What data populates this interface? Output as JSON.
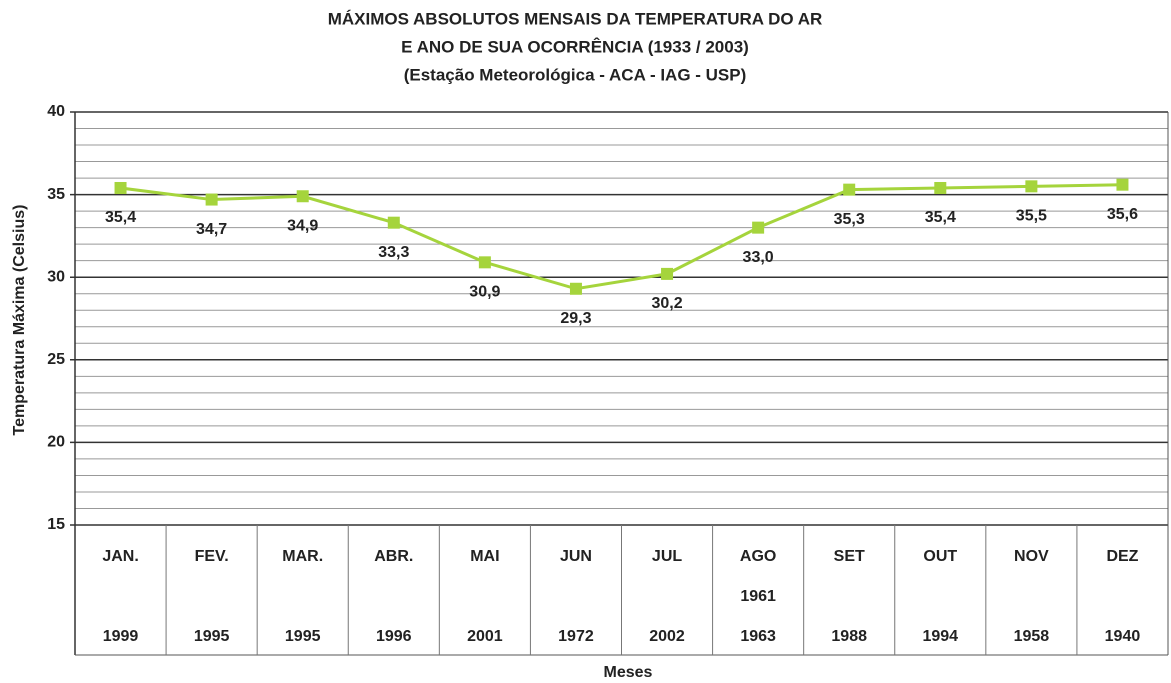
{
  "chart_data": {
    "type": "line",
    "title": [
      "MÁXIMOS ABSOLUTOS MENSAIS DA TEMPERATURA DO AR",
      "E ANO DE SUA OCORRÊNCIA (1933 / 2003)",
      "(Estação Meteorológica - ACA - IAG - USP)"
    ],
    "xlabel": "Meses",
    "ylabel": "Temperatura Máxima (Celsius)",
    "categories": [
      "JAN.",
      "FEV.",
      "MAR.",
      "ABR.",
      "MAI",
      "JUN",
      "JUL",
      "AGO",
      "SET",
      "OUT",
      "NOV",
      "DEZ"
    ],
    "years": [
      [
        "1999"
      ],
      [
        "1995"
      ],
      [
        "1995"
      ],
      [
        "1996"
      ],
      [
        "2001"
      ],
      [
        "1972"
      ],
      [
        "2002"
      ],
      [
        "1961",
        "1963"
      ],
      [
        "1988"
      ],
      [
        "1994"
      ],
      [
        "1958"
      ],
      [
        "1940"
      ]
    ],
    "values": [
      35.4,
      34.7,
      34.9,
      33.3,
      30.9,
      29.3,
      30.2,
      33.0,
      35.3,
      35.4,
      35.5,
      35.6
    ],
    "value_labels": [
      "35,4",
      "34,7",
      "34,9",
      "33,3",
      "30,9",
      "29,3",
      "30,2",
      "33,0",
      "35,3",
      "35,4",
      "35,5",
      "35,6"
    ],
    "color": "#a5d43c",
    "ylim": [
      15,
      40
    ],
    "yticks": [
      15,
      20,
      25,
      30,
      35,
      40
    ],
    "grid": true
  }
}
